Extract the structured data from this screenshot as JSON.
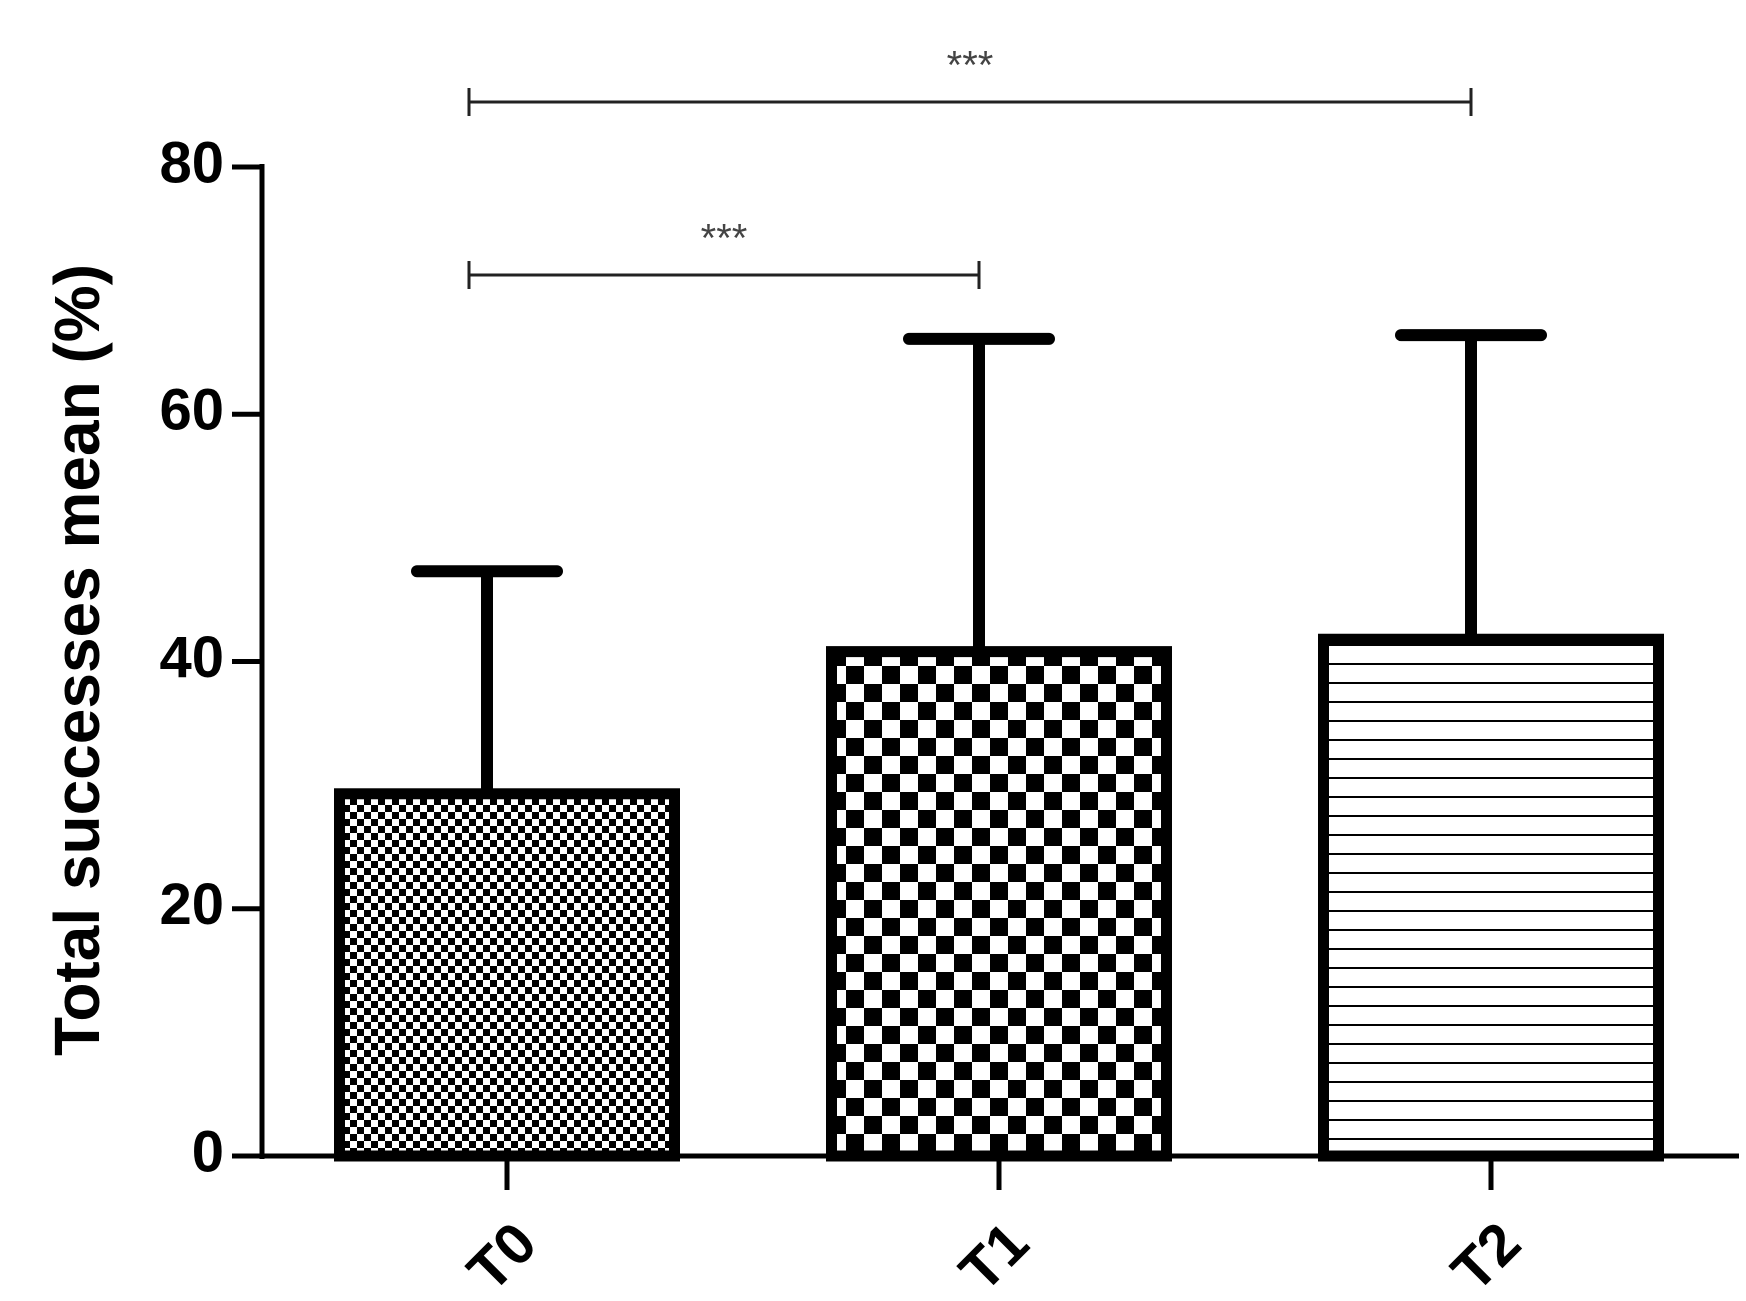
{
  "chart_data": {
    "type": "bar",
    "y_label": "Total successes mean (%)",
    "categories": [
      "T0",
      "T1",
      "T2"
    ],
    "values": [
      29.3,
      40.8,
      41.8
    ],
    "errors": [
      18,
      25.3,
      24.6
    ],
    "patterns": [
      "fine-checker",
      "checker",
      "horizontal-lines"
    ],
    "color": "#000000",
    "ylim": [
      0,
      80
    ],
    "yticks": [
      0,
      20,
      40,
      60,
      80
    ],
    "annotations": [
      {
        "between": [
          0,
          1
        ],
        "label": "***"
      },
      {
        "between": [
          0,
          2
        ],
        "label": "***"
      }
    ]
  }
}
